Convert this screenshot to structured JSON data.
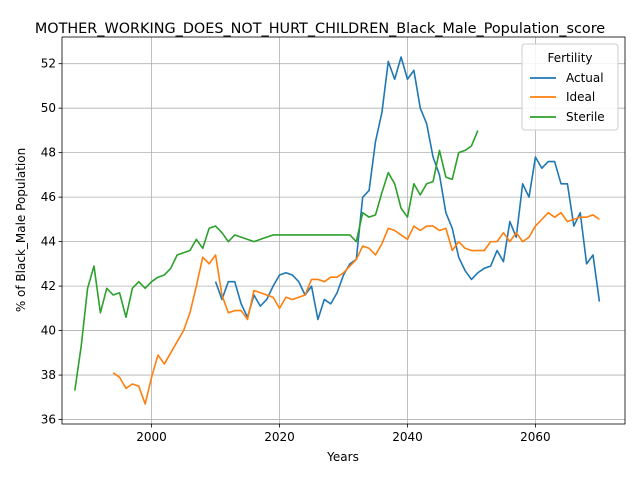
{
  "chart_data": {
    "type": "line",
    "title": "MOTHER_WORKING_DOES_NOT_HURT_CHILDREN_Black_Male_Population_score",
    "xlabel": "Years",
    "ylabel": "% of Black_Male Population",
    "xlim": [
      1986,
      2074
    ],
    "ylim": [
      35.8,
      53.2
    ],
    "xticks": [
      2000,
      2020,
      2040,
      2060
    ],
    "yticks": [
      36,
      38,
      40,
      42,
      44,
      46,
      48,
      50,
      52
    ],
    "grid": true,
    "legend": {
      "title": "Fertility",
      "position": "top-right"
    },
    "series": [
      {
        "name": "Actual",
        "color": "#1f77b4",
        "x": [
          2010,
          2011,
          2012,
          2013,
          2014,
          2015,
          2016,
          2017,
          2018,
          2019,
          2020,
          2021,
          2022,
          2023,
          2024,
          2025,
          2026,
          2027,
          2028,
          2029,
          2030,
          2031,
          2032,
          2033,
          2034,
          2035,
          2036,
          2037,
          2038,
          2039,
          2040,
          2041,
          2042,
          2043,
          2044,
          2045,
          2046,
          2047,
          2048,
          2049,
          2050,
          2051,
          2052,
          2053,
          2054,
          2055,
          2056,
          2057,
          2058,
          2059,
          2060,
          2061,
          2062,
          2063,
          2064,
          2065,
          2066,
          2067,
          2068,
          2069,
          2070
        ],
        "values": [
          42.2,
          41.4,
          42.2,
          42.2,
          41.2,
          40.6,
          41.6,
          41.1,
          41.4,
          42.0,
          42.5,
          42.6,
          42.5,
          42.2,
          41.6,
          42.0,
          40.5,
          41.4,
          41.2,
          41.7,
          42.5,
          43.0,
          43.2,
          46.0,
          46.3,
          48.5,
          49.8,
          52.1,
          51.3,
          52.3,
          51.3,
          51.7,
          50.0,
          49.3,
          47.8,
          47.0,
          45.3,
          44.6,
          43.3,
          42.7,
          42.3,
          42.6,
          42.8,
          42.9,
          43.6,
          43.1,
          44.9,
          44.2,
          46.6,
          46.0,
          47.8,
          47.3,
          47.6,
          47.6,
          46.6,
          46.6,
          44.7,
          45.3,
          43.0,
          43.4,
          41.3
        ]
      },
      {
        "name": "Ideal",
        "color": "#ff7f0e",
        "x": [
          1994,
          1995,
          1996,
          1997,
          1998,
          1999,
          2000,
          2001,
          2002,
          2003,
          2004,
          2005,
          2006,
          2007,
          2008,
          2009,
          2010,
          2011,
          2012,
          2013,
          2014,
          2015,
          2016,
          2017,
          2018,
          2019,
          2020,
          2021,
          2022,
          2023,
          2024,
          2025,
          2026,
          2027,
          2028,
          2029,
          2030,
          2031,
          2032,
          2033,
          2034,
          2035,
          2036,
          2037,
          2038,
          2039,
          2040,
          2041,
          2042,
          2043,
          2044,
          2045,
          2046,
          2047,
          2048,
          2049,
          2050,
          2051,
          2052,
          2053,
          2054,
          2055,
          2056,
          2057,
          2058,
          2059,
          2060,
          2061,
          2062,
          2063,
          2064,
          2065,
          2066,
          2067,
          2068,
          2069,
          2070
        ],
        "values": [
          38.1,
          37.9,
          37.4,
          37.6,
          37.5,
          36.7,
          37.9,
          38.9,
          38.5,
          39.0,
          39.5,
          40.0,
          40.8,
          42.0,
          43.3,
          43.0,
          43.4,
          41.6,
          40.8,
          40.9,
          40.9,
          40.5,
          41.8,
          41.7,
          41.6,
          41.5,
          41.0,
          41.5,
          41.4,
          41.5,
          41.6,
          42.3,
          42.3,
          42.2,
          42.4,
          42.4,
          42.6,
          42.9,
          43.2,
          43.8,
          43.7,
          43.4,
          43.9,
          44.6,
          44.5,
          44.3,
          44.1,
          44.7,
          44.5,
          44.7,
          44.7,
          44.5,
          44.6,
          43.6,
          44.0,
          43.7,
          43.6,
          43.6,
          43.6,
          44.0,
          44.0,
          44.4,
          44.0,
          44.4,
          44.0,
          44.2,
          44.7,
          45.0,
          45.3,
          45.1,
          45.3,
          44.9,
          45.0,
          45.1,
          45.1,
          45.2,
          45.0
        ]
      },
      {
        "name": "Sterile",
        "color": "#2ca02c",
        "x": [
          1988,
          1989,
          1990,
          1991,
          1992,
          1993,
          1994,
          1995,
          1996,
          1997,
          1998,
          1999,
          2000,
          2001,
          2002,
          2003,
          2004,
          2005,
          2006,
          2007,
          2008,
          2009,
          2010,
          2011,
          2012,
          2013,
          2014,
          2015,
          2016,
          2017,
          2018,
          2019,
          2020,
          2021,
          2022,
          2023,
          2024,
          2025,
          2026,
          2027,
          2028,
          2029,
          2030,
          2031,
          2032,
          2033,
          2034,
          2035,
          2036,
          2037,
          2038,
          2039,
          2040,
          2041,
          2042,
          2043,
          2044,
          2045,
          2046,
          2047,
          2048,
          2049,
          2050,
          2051
        ],
        "values": [
          37.3,
          39.3,
          41.9,
          42.9,
          40.8,
          41.9,
          41.6,
          41.7,
          40.6,
          41.9,
          42.2,
          41.9,
          42.2,
          42.4,
          42.5,
          42.8,
          43.4,
          43.5,
          43.6,
          44.1,
          43.7,
          44.6,
          44.7,
          44.4,
          44.0,
          44.3,
          44.2,
          44.1,
          44.0,
          44.1,
          44.2,
          44.3,
          44.3,
          44.3,
          44.3,
          44.3,
          44.3,
          44.3,
          44.3,
          44.3,
          44.3,
          44.3,
          44.3,
          44.3,
          44.0,
          45.3,
          45.1,
          45.2,
          46.2,
          47.1,
          46.6,
          45.5,
          45.1,
          46.6,
          46.1,
          46.6,
          46.7,
          48.1,
          46.9,
          46.8,
          48.0,
          48.1,
          48.3,
          49.0
        ]
      }
    ]
  }
}
